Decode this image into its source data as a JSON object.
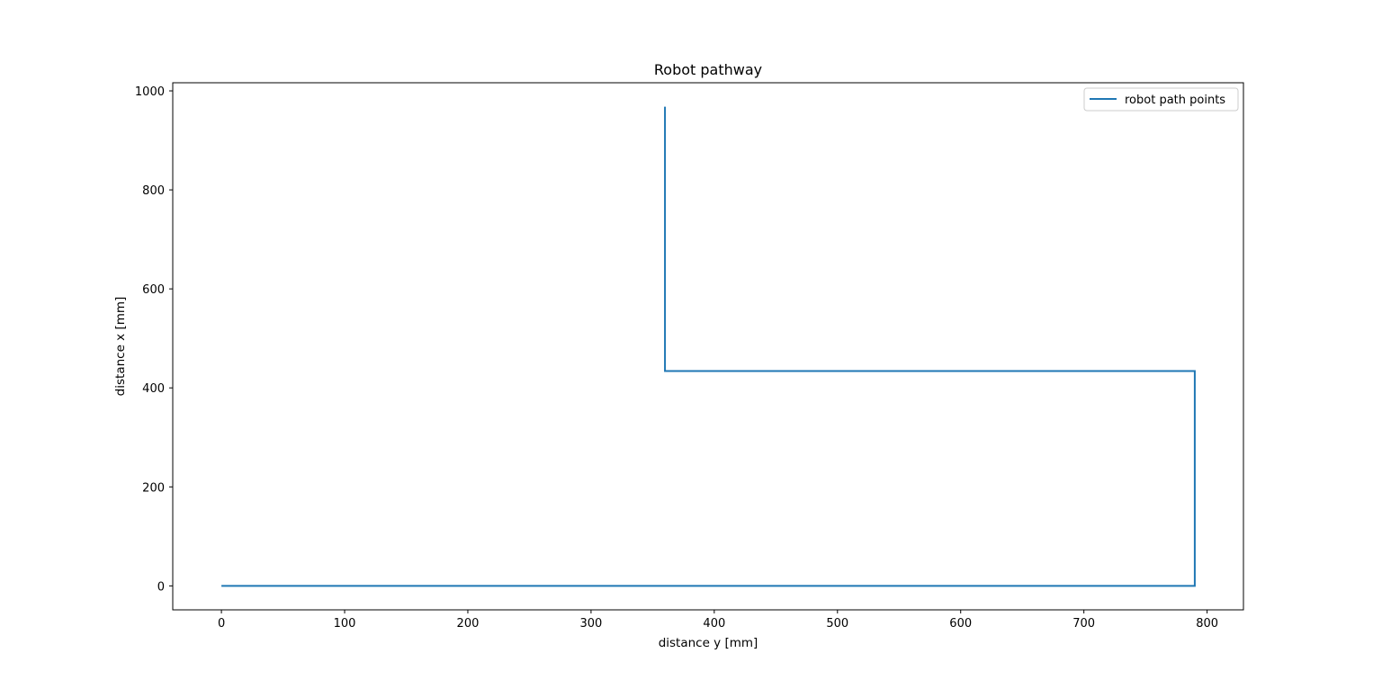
{
  "chart_data": {
    "type": "line",
    "title": "Robot pathway",
    "xlabel": "distance y [mm]",
    "ylabel": "distance x [mm]",
    "xlim": [
      -39.5,
      829.5
    ],
    "ylim": [
      -48.4,
      1016.4
    ],
    "xticks": [
      0,
      100,
      200,
      300,
      400,
      500,
      600,
      700,
      800
    ],
    "yticks": [
      0,
      200,
      400,
      600,
      800,
      1000
    ],
    "grid": false,
    "legend": {
      "position": "top-right",
      "entries": [
        "robot path points"
      ]
    },
    "series": [
      {
        "name": "robot path points",
        "color": "#1f77b4",
        "x": [
          0,
          790,
          790,
          360,
          360,
          360
        ],
        "y": [
          0,
          0,
          434,
          434,
          460,
          968
        ]
      }
    ]
  }
}
